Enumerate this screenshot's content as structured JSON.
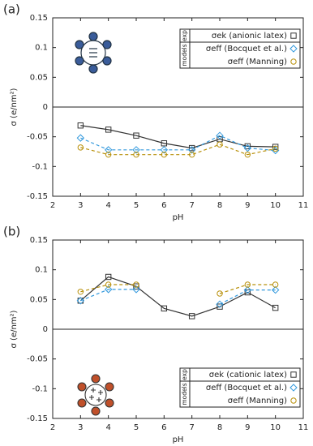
{
  "chart_data": [
    {
      "type": "line",
      "panel_label": "(a)",
      "xlabel": "pH",
      "ylabel": "σ (e/nm²)",
      "xlim": [
        2,
        11
      ],
      "xticks": [
        2,
        3,
        4,
        5,
        6,
        7,
        8,
        9,
        10,
        11
      ],
      "ylim": [
        -0.15,
        0.15
      ],
      "yticks": [
        -0.15,
        -0.1,
        -0.05,
        0,
        0.05,
        0.1,
        0.15
      ],
      "zero_line": true,
      "legend_groups": [
        "exp",
        "models"
      ],
      "icon": "anionic",
      "x": [
        3,
        4,
        5,
        6,
        7,
        8,
        9,
        10
      ],
      "series": [
        {
          "name": "σek (anionic latex)",
          "group": 0,
          "color": "#333333",
          "marker": "square",
          "dashed": false,
          "values": [
            -0.031,
            -0.038,
            -0.048,
            -0.061,
            -0.069,
            -0.054,
            -0.066,
            -0.067
          ]
        },
        {
          "name": "σeff (Bocquet et al.)",
          "group": 1,
          "color": "#3399dd",
          "marker": "diamond",
          "dashed": true,
          "values": [
            -0.052,
            -0.072,
            -0.072,
            -0.072,
            -0.072,
            -0.048,
            -0.069,
            -0.073
          ]
        },
        {
          "name": "σeff (Manning)",
          "group": 1,
          "color": "#b8900a",
          "marker": "circle",
          "dashed": true,
          "values": [
            -0.068,
            -0.08,
            -0.08,
            -0.08,
            -0.08,
            -0.063,
            -0.08,
            -0.07
          ]
        }
      ]
    },
    {
      "type": "line",
      "panel_label": "(b)",
      "xlabel": "pH",
      "ylabel": "σ (e/nm²)",
      "xlim": [
        2,
        11
      ],
      "xticks": [
        2,
        3,
        4,
        5,
        6,
        7,
        8,
        9,
        10,
        11
      ],
      "ylim": [
        -0.15,
        0.15
      ],
      "yticks": [
        -0.15,
        -0.1,
        -0.05,
        0,
        0.05,
        0.1,
        0.15
      ],
      "zero_line": true,
      "legend_groups": [
        "exp",
        "models"
      ],
      "icon": "cationic",
      "x": [
        3,
        4,
        5,
        6,
        7,
        8,
        9,
        10
      ],
      "series": [
        {
          "name": "σek (cationic latex)",
          "group": 0,
          "color": "#333333",
          "marker": "square",
          "dashed": false,
          "values": [
            0.048,
            0.088,
            0.072,
            0.035,
            0.022,
            0.038,
            0.062,
            0.036
          ]
        },
        {
          "name": "σeff (Bocquet et al.)",
          "group": 1,
          "color": "#3399dd",
          "marker": "diamond",
          "dashed": true,
          "values": [
            0.048,
            0.067,
            0.067,
            null,
            null,
            0.042,
            0.066,
            0.066
          ]
        },
        {
          "name": "σeff (Manning)",
          "group": 1,
          "color": "#b8900a",
          "marker": "circle",
          "dashed": true,
          "values": [
            0.063,
            0.075,
            0.075,
            null,
            null,
            0.06,
            0.075,
            0.075
          ]
        }
      ]
    }
  ]
}
